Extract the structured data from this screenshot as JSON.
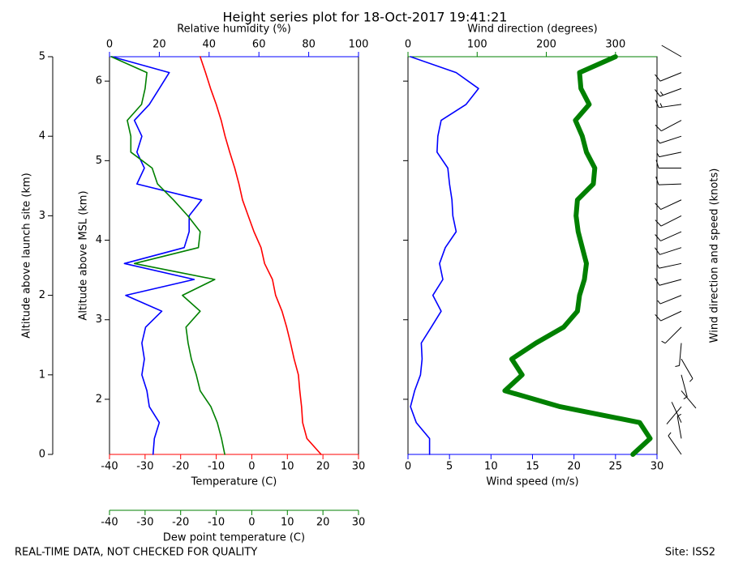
{
  "chart_data": [
    {
      "type": "line",
      "title": "Height series plot for 18-Oct-2017 19:41:21",
      "y": [
        0,
        0.2,
        0.4,
        0.6,
        0.8,
        1.0,
        1.2,
        1.4,
        1.6,
        1.8,
        2.0,
        2.2,
        2.4,
        2.6,
        2.8,
        3.0,
        3.2,
        3.4,
        3.6,
        3.8,
        4.0,
        4.2,
        4.4,
        4.6,
        4.8,
        5.0
      ],
      "axes": [
        {
          "side": "left-outer",
          "label": "Altitude above launch site (km)",
          "color": "#000000",
          "lim": [
            0,
            5
          ],
          "ticks": [
            0,
            1,
            2,
            3,
            4,
            5
          ]
        },
        {
          "side": "left",
          "label": "Altitude above MSL (km)",
          "color": "#000000",
          "lim": [
            1.307,
            6.307
          ],
          "ticks": [
            2,
            3,
            4,
            5,
            6
          ]
        },
        {
          "side": "bottom",
          "label": "Temperature (C)",
          "color": "#ff0000",
          "lim": [
            -40,
            30
          ],
          "ticks": [
            -40,
            -30,
            -20,
            -10,
            0,
            10,
            20,
            30
          ]
        },
        {
          "side": "top",
          "label": "Relative humidity (%)",
          "color": "#0000ff",
          "lim": [
            0,
            100
          ],
          "ticks": [
            0,
            20,
            40,
            60,
            80,
            100
          ]
        },
        {
          "side": "bottom-outer",
          "label": "Dew point temperature (C)",
          "color": "#008000",
          "lim": [
            -40,
            30
          ],
          "ticks": [
            -40,
            -30,
            -20,
            -10,
            0,
            10,
            20,
            30
          ]
        }
      ],
      "series": [
        {
          "color": "#ff0000",
          "axis": 2,
          "values": [
            19.5,
            15.5,
            14.3,
            14.0,
            13.5,
            13.1,
            11.9,
            10.9,
            9.8,
            8.5,
            6.7,
            5.8,
            3.6,
            2.6,
            0.6,
            -1.0,
            -2.6,
            -3.6,
            -4.8,
            -6.2,
            -7.5,
            -8.6,
            -10.0,
            -11.6,
            -13.0,
            -14.5
          ]
        },
        {
          "color": "#0000ff",
          "axis": 3,
          "values": [
            17.5,
            18.0,
            20.0,
            16.0,
            15.0,
            13.0,
            14.0,
            13.0,
            14.5,
            21.0,
            6.5,
            34.0,
            6.0,
            30.0,
            32.0,
            32.0,
            37.0,
            11.0,
            14.0,
            11.0,
            13.0,
            10.0,
            16.0,
            20.0,
            24.0,
            1.0
          ]
        },
        {
          "color": "#008000",
          "axis": 4,
          "values": [
            -7.6,
            -8.5,
            -9.7,
            -11.5,
            -14.5,
            -15.6,
            -17.0,
            -17.9,
            -18.5,
            -14.5,
            -19.5,
            -10.4,
            -33.0,
            -15.0,
            -14.5,
            -18.0,
            -22.0,
            -26.5,
            -28.0,
            -34.0,
            -34.0,
            -35.0,
            -31.0,
            -30.0,
            -29.5,
            -39.5
          ]
        }
      ]
    },
    {
      "type": "line",
      "barb_label": "Wind direction and speed (knots)",
      "axes": [
        {
          "side": "bottom",
          "label": "Wind speed (m/s)",
          "color": "#0000ff",
          "lim": [
            0,
            30
          ],
          "ticks": [
            0,
            5,
            10,
            15,
            20,
            25,
            30
          ]
        },
        {
          "side": "top",
          "label": "Wind direction (degrees)",
          "color": "#008000",
          "lim": [
            0,
            360
          ],
          "ticks": [
            0,
            100,
            200,
            300
          ]
        }
      ],
      "series": [
        {
          "color": "#0000ff",
          "axis": 0,
          "values": [
            2.6,
            2.6,
            1.0,
            0.3,
            0.8,
            1.5,
            1.7,
            1.6,
            2.8,
            4.0,
            3.0,
            4.2,
            3.8,
            4.5,
            5.8,
            5.4,
            5.3,
            5.0,
            4.8,
            3.5,
            3.6,
            4.0,
            7.0,
            8.5,
            5.8,
            0.3
          ]
        },
        {
          "color": "#008000",
          "axis": 1,
          "values": [
            325,
            350,
            335,
            220,
            140,
            165,
            150,
            185,
            225,
            245,
            248,
            255,
            258,
            252,
            246,
            243,
            245,
            268,
            270,
            258,
            252,
            242,
            262,
            250,
            248,
            300
          ]
        }
      ]
    }
  ],
  "footer": {
    "left": "REAL-TIME DATA, NOT CHECKED FOR QUALITY",
    "right": "Site: ISS2"
  }
}
